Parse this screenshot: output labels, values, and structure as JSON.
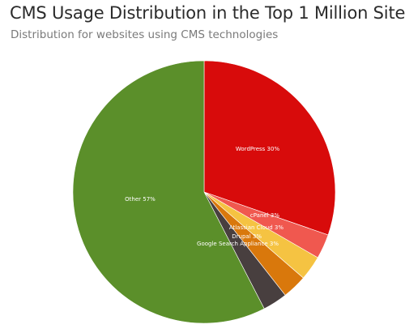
{
  "chart_data": {
    "type": "pie",
    "title": "CMS Usage Distribution in the Top 1 Million Sites",
    "subtitle": "Distribution for websites using CMS technologies",
    "slices": [
      {
        "label": "WordPress 30%",
        "value": 30,
        "color": "#d80b0b"
      },
      {
        "label": "cPanel 3%",
        "value": 3,
        "color": "#f0584f"
      },
      {
        "label": "Atlassian Cloud 3%",
        "value": 3,
        "color": "#f5c342"
      },
      {
        "label": "Drupal 3%",
        "value": 3,
        "color": "#d9780c"
      },
      {
        "label": "Google Search Appliance 3%",
        "value": 3,
        "color": "#483f3f"
      },
      {
        "label": "Other 57%",
        "value": 57,
        "color": "#5b8f2a"
      }
    ],
    "start_angle": "12 o'clock",
    "direction": "clockwise",
    "legend": "none"
  }
}
